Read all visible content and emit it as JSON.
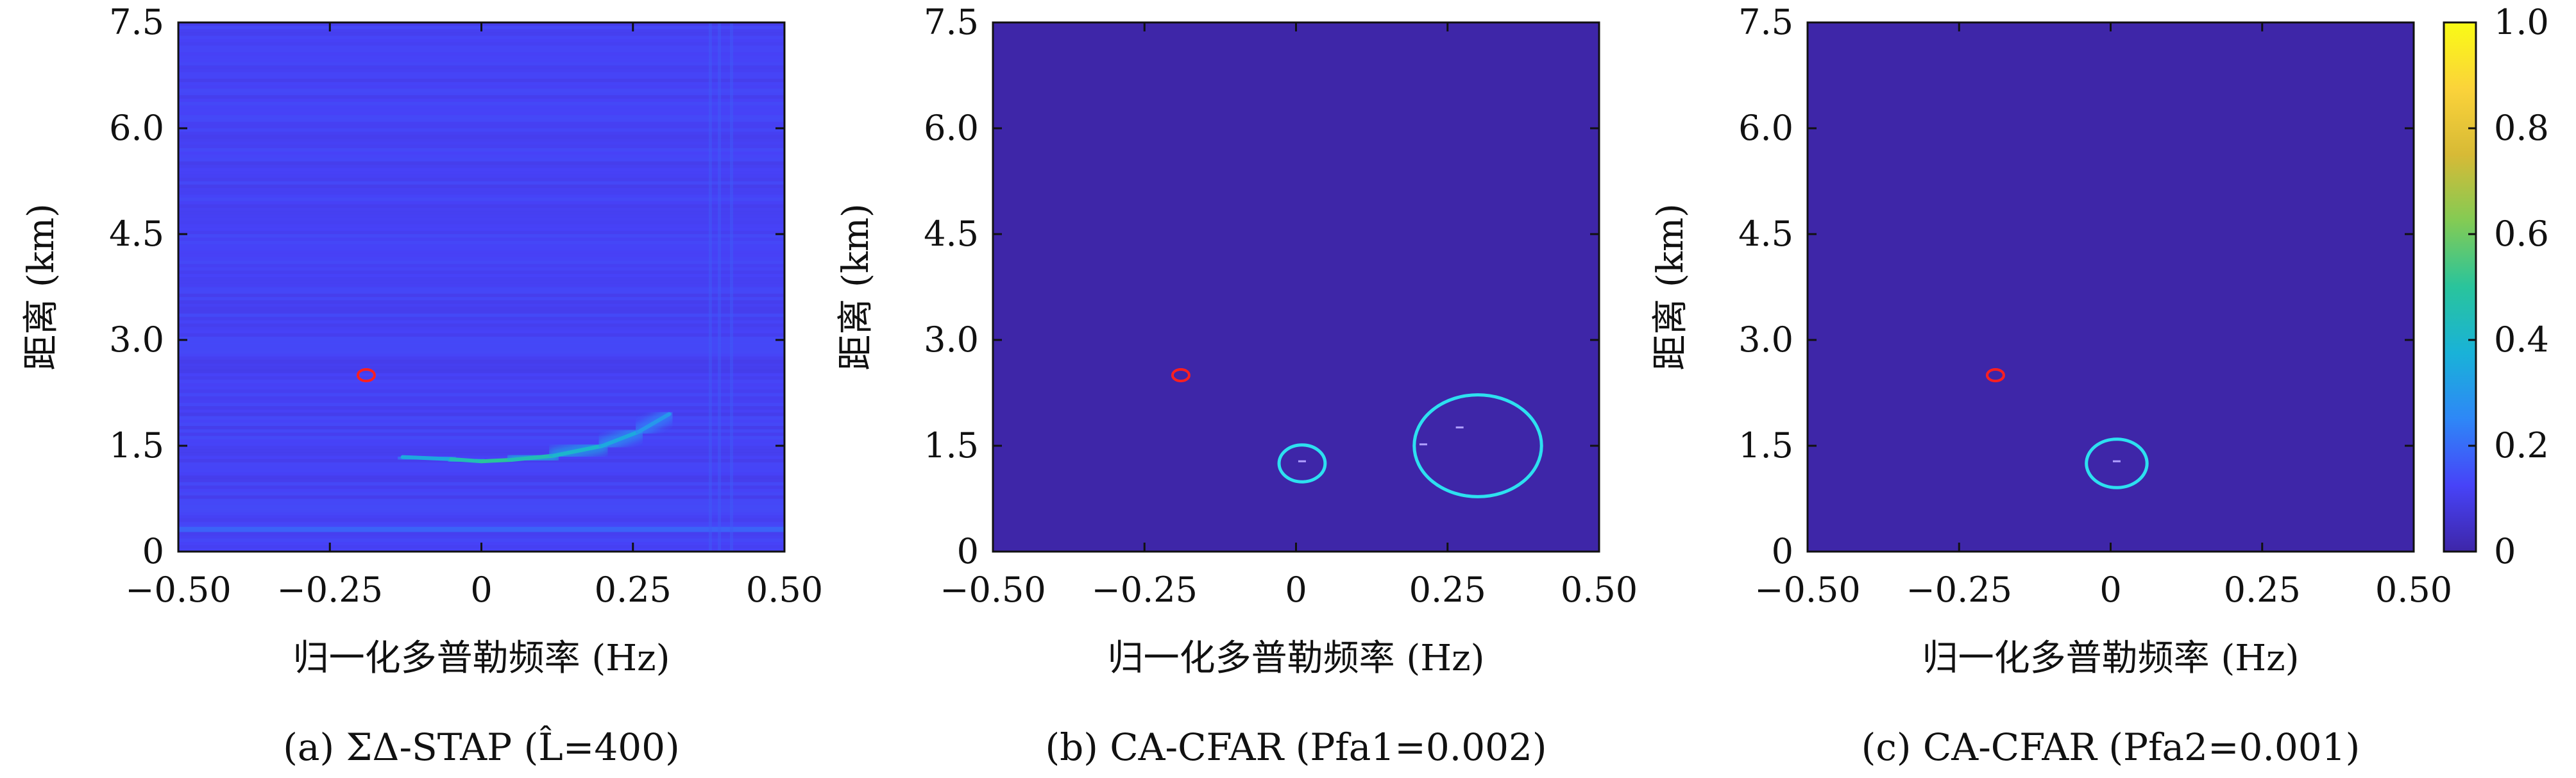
{
  "chart_data": [
    {
      "type": "heatmap",
      "caption": "(a) ΣΔ-STAP (L̂=400)",
      "xlabel": "归一化多普勒频率 (Hz)",
      "ylabel": "距离 (km)",
      "xlim": [
        -0.5,
        0.5
      ],
      "ylim": [
        0,
        7.5
      ],
      "xticks": [
        "−0.50",
        "−0.25",
        "0",
        "0.25",
        "0.50"
      ],
      "yticks": [
        "0",
        "1.5",
        "3.0",
        "4.5",
        "6.0",
        "7.5"
      ],
      "background_value": 0.12,
      "clutter_ridge": [
        {
          "x": -0.13,
          "y": 1.34,
          "v": 0.35
        },
        {
          "x": -0.05,
          "y": 1.31,
          "v": 0.45
        },
        {
          "x": 0.0,
          "y": 1.28,
          "v": 0.5
        },
        {
          "x": 0.05,
          "y": 1.3,
          "v": 0.45
        },
        {
          "x": 0.12,
          "y": 1.36,
          "v": 0.4
        },
        {
          "x": 0.2,
          "y": 1.5,
          "v": 0.35
        },
        {
          "x": 0.26,
          "y": 1.7,
          "v": 0.3
        },
        {
          "x": 0.31,
          "y": 1.95,
          "v": 0.25
        }
      ],
      "red_markers": [
        {
          "x": -0.19,
          "y": 2.5
        }
      ],
      "cyan_circles": [],
      "detections": []
    },
    {
      "type": "heatmap",
      "caption": "(b) CA-CFAR (Pfa1=0.002)",
      "xlabel": "归一化多普勒频率 (Hz)",
      "ylabel": "距离 (km)",
      "xlim": [
        -0.5,
        0.5
      ],
      "ylim": [
        0,
        7.5
      ],
      "xticks": [
        "−0.50",
        "−0.25",
        "0",
        "0.25",
        "0.50"
      ],
      "yticks": [
        "0",
        "1.5",
        "3.0",
        "4.5",
        "6.0",
        "7.5"
      ],
      "background_value": 0.0,
      "clutter_ridge": [],
      "red_markers": [
        {
          "x": -0.19,
          "y": 2.5
        }
      ],
      "cyan_circles": [
        {
          "x": 0.01,
          "y": 1.25,
          "r": 0.038
        },
        {
          "x": 0.3,
          "y": 1.5,
          "r": 0.105
        }
      ],
      "detections": [
        {
          "x": 0.01,
          "y": 1.28
        },
        {
          "x": 0.27,
          "y": 1.76
        },
        {
          "x": 0.21,
          "y": 1.52
        }
      ]
    },
    {
      "type": "heatmap",
      "caption": "(c) CA-CFAR (Pfa2=0.001)",
      "xlabel": "归一化多普勒频率 (Hz)",
      "ylabel": "距离 (km)",
      "xlim": [
        -0.5,
        0.5
      ],
      "ylim": [
        0,
        7.5
      ],
      "xticks": [
        "−0.50",
        "−0.25",
        "0",
        "0.25",
        "0.50"
      ],
      "yticks": [
        "0",
        "1.5",
        "3.0",
        "4.5",
        "6.0",
        "7.5"
      ],
      "background_value": 0.0,
      "clutter_ridge": [],
      "red_markers": [
        {
          "x": -0.19,
          "y": 2.5
        }
      ],
      "cyan_circles": [
        {
          "x": 0.01,
          "y": 1.25,
          "r": 0.05
        }
      ],
      "detections": [
        {
          "x": 0.01,
          "y": 1.28
        }
      ]
    }
  ],
  "colorbar": {
    "min": 0,
    "max": 1.0,
    "ticks": [
      "0",
      "0.2",
      "0.4",
      "0.6",
      "0.8",
      "1.0"
    ],
    "colormap": "parula",
    "stops": [
      "#3e26a8",
      "#4743f8",
      "#2e87f7",
      "#19b2d8",
      "#29c49c",
      "#83cb54",
      "#d7ba36",
      "#fbd33a",
      "#f9fb15"
    ]
  },
  "colors": {
    "red_marker": "#ff1f1f",
    "cyan_circle": "#2de0f0",
    "detection_dash": "#b0a0ff"
  }
}
